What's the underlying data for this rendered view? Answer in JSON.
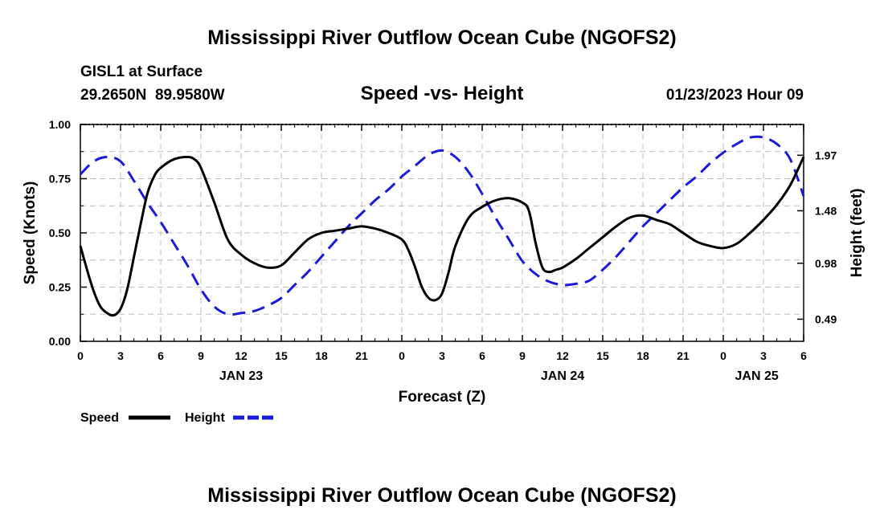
{
  "chart_data": {
    "type": "line",
    "title": "Mississippi River Outflow Ocean Cube (NGOFS2)",
    "footer_title": "Mississippi River Outflow Ocean Cube (NGOFS2)",
    "subtitle": "Speed -vs- Height",
    "station": "GISL1 at Surface",
    "location": "29.2650N  89.9580W",
    "timestamp": "01/23/2023 Hour 09",
    "xlabel": "Forecast (Z)",
    "ylabel": "Speed (Knots)",
    "ylabel_right": "Height (feet)",
    "x_range_hours": [
      0,
      54
    ],
    "x_ticks": [
      {
        "h": 0,
        "label": "0"
      },
      {
        "h": 3,
        "label": "3"
      },
      {
        "h": 6,
        "label": "6"
      },
      {
        "h": 9,
        "label": "9"
      },
      {
        "h": 12,
        "label": "12"
      },
      {
        "h": 15,
        "label": "15"
      },
      {
        "h": 18,
        "label": "18"
      },
      {
        "h": 21,
        "label": "21"
      },
      {
        "h": 24,
        "label": "0"
      },
      {
        "h": 27,
        "label": "3"
      },
      {
        "h": 30,
        "label": "6"
      },
      {
        "h": 33,
        "label": "9"
      },
      {
        "h": 36,
        "label": "12"
      },
      {
        "h": 39,
        "label": "15"
      },
      {
        "h": 42,
        "label": "18"
      },
      {
        "h": 45,
        "label": "21"
      },
      {
        "h": 48,
        "label": "0"
      },
      {
        "h": 51,
        "label": "3"
      },
      {
        "h": 54,
        "label": "6"
      }
    ],
    "date_labels": [
      {
        "h": 12,
        "label": "JAN 23"
      },
      {
        "h": 36,
        "label": "JAN 24"
      },
      {
        "h": 50.5,
        "label": "JAN 25"
      }
    ],
    "ylim": [
      0,
      1
    ],
    "y_ticks": [
      {
        "v": 0,
        "label": "0.00"
      },
      {
        "v": 0.25,
        "label": "0.25"
      },
      {
        "v": 0.5,
        "label": "0.50"
      },
      {
        "v": 0.75,
        "label": "0.75"
      },
      {
        "v": 1,
        "label": "1.00"
      }
    ],
    "y_right_ticks": [
      {
        "v": 0.102,
        "label": "0.49"
      },
      {
        "v": 0.36,
        "label": "0.98"
      },
      {
        "v": 0.602,
        "label": "1.48"
      },
      {
        "v": 0.858,
        "label": "1.97"
      }
    ],
    "series": [
      {
        "name": "Speed",
        "color": "#000000",
        "dash": "solid",
        "x": [
          0,
          0.5,
          1,
          1.5,
          2,
          2.5,
          3,
          3.5,
          4,
          4.5,
          5,
          5.5,
          6,
          7,
          8,
          8.5,
          9,
          10,
          11,
          12,
          13,
          14,
          15,
          16,
          17,
          18,
          19,
          20,
          21,
          22,
          23,
          24,
          24.5,
          25,
          25.5,
          26,
          26.5,
          27,
          27.5,
          28,
          29,
          30,
          31,
          32,
          33,
          33.5,
          34,
          34.5,
          35,
          35.5,
          36,
          37,
          38,
          39,
          40,
          41,
          42,
          43,
          44,
          45,
          46,
          47,
          48,
          49,
          50,
          51,
          52,
          53,
          54
        ],
        "values": [
          0.44,
          0.33,
          0.23,
          0.16,
          0.13,
          0.12,
          0.15,
          0.24,
          0.39,
          0.54,
          0.68,
          0.76,
          0.8,
          0.84,
          0.85,
          0.84,
          0.8,
          0.64,
          0.47,
          0.4,
          0.36,
          0.34,
          0.35,
          0.41,
          0.47,
          0.5,
          0.51,
          0.52,
          0.53,
          0.52,
          0.5,
          0.47,
          0.42,
          0.34,
          0.25,
          0.2,
          0.19,
          0.22,
          0.32,
          0.44,
          0.57,
          0.62,
          0.65,
          0.66,
          0.64,
          0.6,
          0.45,
          0.34,
          0.32,
          0.33,
          0.34,
          0.38,
          0.43,
          0.48,
          0.53,
          0.57,
          0.58,
          0.56,
          0.54,
          0.5,
          0.46,
          0.44,
          0.43,
          0.45,
          0.5,
          0.56,
          0.63,
          0.72,
          0.85
        ]
      },
      {
        "name": "Height",
        "color": "#1a1adb",
        "dash": "dashed",
        "x": [
          0,
          1,
          2,
          3,
          4,
          5,
          6,
          7,
          8,
          9,
          10,
          11,
          12,
          13,
          14,
          15,
          16,
          17,
          18,
          19,
          20,
          21,
          22,
          23,
          24,
          25,
          26,
          27,
          28,
          29,
          30,
          31,
          32,
          33,
          34,
          35,
          36,
          37,
          38,
          39,
          40,
          41,
          42,
          43,
          44,
          45,
          46,
          47,
          48,
          49,
          50,
          51,
          52,
          53,
          54
        ],
        "values": [
          0.77,
          0.83,
          0.85,
          0.83,
          0.74,
          0.64,
          0.55,
          0.45,
          0.35,
          0.24,
          0.16,
          0.125,
          0.13,
          0.14,
          0.165,
          0.2,
          0.26,
          0.32,
          0.39,
          0.46,
          0.53,
          0.59,
          0.65,
          0.7,
          0.76,
          0.81,
          0.86,
          0.88,
          0.85,
          0.78,
          0.68,
          0.57,
          0.47,
          0.37,
          0.31,
          0.275,
          0.26,
          0.265,
          0.28,
          0.33,
          0.39,
          0.46,
          0.53,
          0.59,
          0.65,
          0.71,
          0.76,
          0.82,
          0.87,
          0.91,
          0.94,
          0.94,
          0.91,
          0.84,
          0.67
        ]
      }
    ]
  }
}
